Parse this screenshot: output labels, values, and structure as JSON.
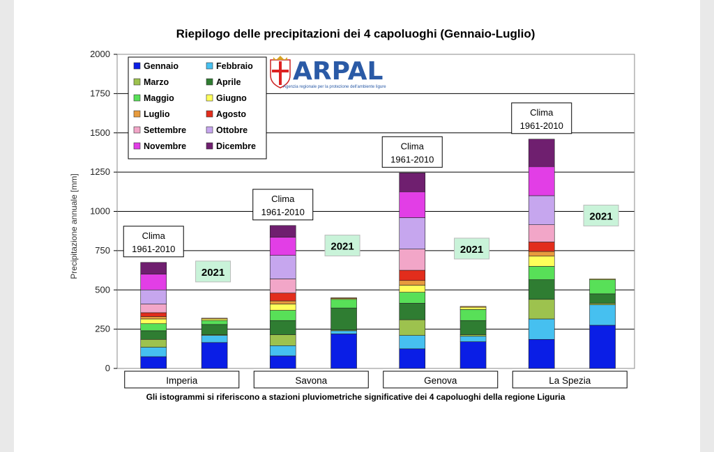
{
  "chart_data": {
    "type": "bar",
    "stacked": true,
    "title": "Riepilogo delle precipitazioni dei 4 capoluoghi (Gennaio-Luglio)",
    "ylabel": "Precipitazione annuale [mm]",
    "ylim": [
      0,
      2000
    ],
    "yticks": [
      0,
      250,
      500,
      750,
      1000,
      1250,
      1500,
      1750,
      2000
    ],
    "grid": true,
    "legend_position": "top-left",
    "categories": [
      "Imperia",
      "Savona",
      "Genova",
      "La Spezia"
    ],
    "series": [
      {
        "name": "Gennaio",
        "color": "#0a1ee6",
        "clima": [
          75,
          80,
          125,
          185
        ],
        "y2021": [
          165,
          220,
          170,
          275
        ]
      },
      {
        "name": "Febbraio",
        "color": "#46c0f0",
        "clima": [
          60,
          65,
          85,
          130
        ],
        "y2021": [
          45,
          20,
          35,
          130
        ]
      },
      {
        "name": "Marzo",
        "color": "#9dc24e",
        "clima": [
          50,
          70,
          100,
          125
        ],
        "y2021": [
          5,
          5,
          10,
          10
        ]
      },
      {
        "name": "Aprile",
        "color": "#2f7d32",
        "clima": [
          55,
          90,
          105,
          125
        ],
        "y2021": [
          65,
          140,
          90,
          60
        ]
      },
      {
        "name": "Maggio",
        "color": "#58e058",
        "clima": [
          45,
          65,
          70,
          85
        ],
        "y2021": [
          25,
          55,
          70,
          90
        ]
      },
      {
        "name": "Giugno",
        "color": "#ffff5a",
        "clima": [
          30,
          40,
          45,
          65
        ],
        "y2021": [
          10,
          5,
          15,
          5
        ]
      },
      {
        "name": "Luglio",
        "color": "#e79b3e",
        "clima": [
          15,
          20,
          30,
          30
        ],
        "y2021": [
          5,
          5,
          5,
          0
        ]
      },
      {
        "name": "Agosto",
        "color": "#e22d1c",
        "clima": [
          25,
          50,
          65,
          60
        ],
        "y2021": [
          0,
          0,
          0,
          0
        ]
      },
      {
        "name": "Settembre",
        "color": "#f2a6c8",
        "clima": [
          55,
          90,
          135,
          110
        ],
        "y2021": [
          0,
          0,
          0,
          0
        ]
      },
      {
        "name": "Ottobre",
        "color": "#c6a6ee",
        "clima": [
          90,
          150,
          200,
          185
        ],
        "y2021": [
          0,
          0,
          0,
          0
        ]
      },
      {
        "name": "Novembre",
        "color": "#e23ee6",
        "clima": [
          100,
          115,
          165,
          185
        ],
        "y2021": [
          0,
          0,
          0,
          0
        ]
      },
      {
        "name": "Dicembre",
        "color": "#6f1f6f",
        "clima": [
          75,
          75,
          120,
          175
        ],
        "y2021": [
          0,
          0,
          0,
          0
        ]
      }
    ],
    "totals_approx": {
      "clima": [
        700,
        920,
        1260,
        1475
      ],
      "y2021": [
        320,
        450,
        400,
        570
      ]
    },
    "clima_label": [
      "Clima",
      "1961-2010"
    ],
    "year_label": "2021",
    "footnote": "Gli istogrammi si riferiscono a stazioni pluviometriche significative dei 4 capoluoghi della regione Liguria"
  },
  "logo": {
    "name": "ARPAL",
    "subtitle": "Agenzia regionale per la protezione dell'ambiente ligure"
  }
}
